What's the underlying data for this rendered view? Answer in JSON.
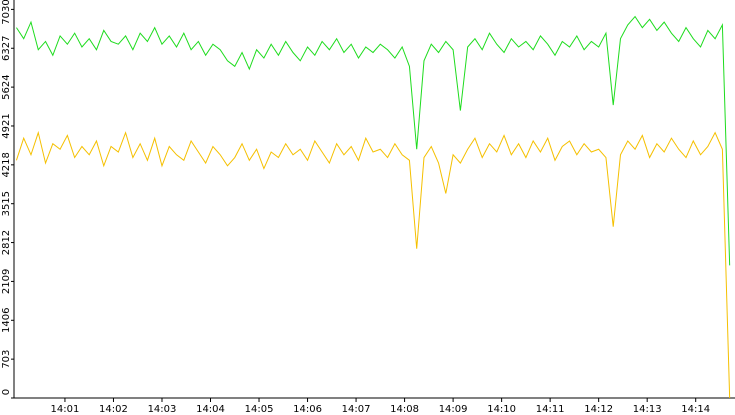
{
  "chart_data": {
    "type": "line",
    "x": [
      840,
      840.15,
      840.3,
      840.45,
      840.6,
      840.75,
      840.9,
      841.05,
      841.2,
      841.35,
      841.5,
      841.65,
      841.8,
      841.95,
      842.1,
      842.25,
      842.4,
      842.55,
      842.7,
      842.85,
      843,
      843.15,
      843.3,
      843.45,
      843.6,
      843.75,
      843.9,
      844.05,
      844.2,
      844.35,
      844.5,
      844.65,
      844.8,
      844.95,
      845.1,
      845.25,
      845.4,
      845.55,
      845.7,
      845.85,
      846,
      846.15,
      846.3,
      846.45,
      846.6,
      846.75,
      846.9,
      847.05,
      847.2,
      847.35,
      847.5,
      847.65,
      847.8,
      847.95,
      848.1,
      848.25,
      848.4,
      848.55,
      848.7,
      848.85,
      849,
      849.15,
      849.3,
      849.45,
      849.6,
      849.75,
      849.9,
      850.05,
      850.2,
      850.35,
      850.5,
      850.65,
      850.8,
      850.95,
      851.1,
      851.25,
      851.4,
      851.55,
      851.7,
      851.85,
      852,
      852.15,
      852.3,
      852.45,
      852.6,
      852.75,
      852.9,
      853.05,
      853.2,
      853.35,
      853.5,
      853.65,
      853.8,
      853.95,
      854.1,
      854.25,
      854.4,
      854.55,
      854.7
    ],
    "series": [
      {
        "color": "#1edc1e",
        "values": [
          6700,
          6500,
          6800,
          6300,
          6450,
          6200,
          6550,
          6400,
          6600,
          6350,
          6500,
          6300,
          6650,
          6450,
          6400,
          6550,
          6300,
          6600,
          6450,
          6700,
          6400,
          6550,
          6350,
          6600,
          6300,
          6450,
          6200,
          6400,
          6300,
          6100,
          6000,
          6250,
          5950,
          6300,
          6150,
          6400,
          6200,
          6450,
          6250,
          6100,
          6350,
          6200,
          6450,
          6300,
          6500,
          6250,
          6400,
          6150,
          6350,
          6250,
          6400,
          6300,
          6150,
          6350,
          6000,
          4500,
          6100,
          6400,
          6250,
          6450,
          6300,
          5200,
          6350,
          6500,
          6300,
          6600,
          6400,
          6250,
          6500,
          6350,
          6450,
          6300,
          6550,
          6400,
          6200,
          6450,
          6350,
          6550,
          6300,
          6450,
          6350,
          6600,
          5300,
          6500,
          6750,
          6900,
          6700,
          6850,
          6650,
          6800,
          6600,
          6450,
          6700,
          6500,
          6350,
          6650,
          6500,
          6750,
          2400
        ]
      },
      {
        "color": "#f5c000",
        "values": [
          4300,
          4700,
          4400,
          4800,
          4250,
          4600,
          4500,
          4750,
          4350,
          4550,
          4400,
          4650,
          4200,
          4550,
          4450,
          4800,
          4350,
          4600,
          4300,
          4700,
          4200,
          4550,
          4400,
          4300,
          4650,
          4450,
          4250,
          4550,
          4400,
          4200,
          4350,
          4600,
          4300,
          4500,
          4150,
          4450,
          4350,
          4600,
          4400,
          4500,
          4300,
          4650,
          4450,
          4250,
          4600,
          4400,
          4550,
          4300,
          4700,
          4450,
          4500,
          4350,
          4600,
          4400,
          4300,
          2700,
          4350,
          4550,
          4250,
          3700,
          4400,
          4250,
          4500,
          4700,
          4350,
          4600,
          4450,
          4750,
          4400,
          4600,
          4350,
          4650,
          4450,
          4700,
          4300,
          4550,
          4650,
          4400,
          4600,
          4450,
          4500,
          4350,
          3100,
          4400,
          4650,
          4500,
          4750,
          4350,
          4600,
          4450,
          4700,
          4500,
          4350,
          4650,
          4400,
          4550,
          4800,
          4500,
          0
        ]
      }
    ],
    "xlim": [
      839.95,
      854.81
    ],
    "xticks": [
      {
        "value": 841,
        "label": "14:01"
      },
      {
        "value": 842,
        "label": "14:02"
      },
      {
        "value": 843,
        "label": "14:03"
      },
      {
        "value": 844,
        "label": "14:04"
      },
      {
        "value": 845,
        "label": "14:05"
      },
      {
        "value": 846,
        "label": "14:06"
      },
      {
        "value": 847,
        "label": "14:07"
      },
      {
        "value": 848,
        "label": "14:08"
      },
      {
        "value": 849,
        "label": "14:09"
      },
      {
        "value": 850,
        "label": "14:10"
      },
      {
        "value": 851,
        "label": "14:11"
      },
      {
        "value": 852,
        "label": "14:12"
      },
      {
        "value": 853,
        "label": "14:13"
      },
      {
        "value": 854,
        "label": "14:14"
      }
    ],
    "ylim": [
      0,
      7200
    ],
    "yticks": [
      0,
      703,
      1406,
      2109,
      2812,
      3515,
      4218,
      4921,
      5624,
      6327,
      7030
    ]
  }
}
